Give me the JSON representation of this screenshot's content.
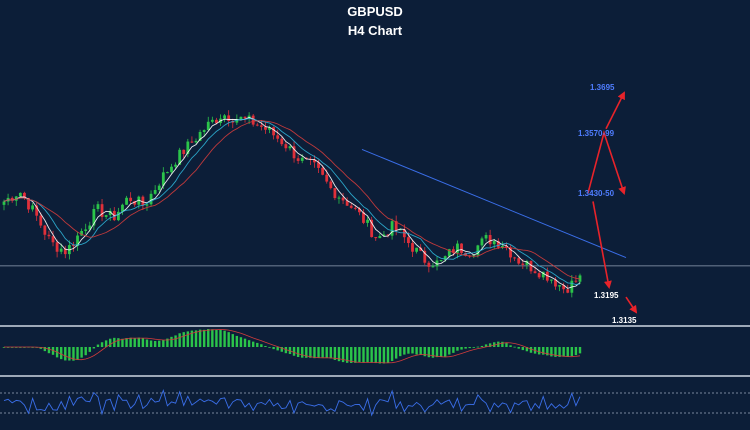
{
  "chart_data": {
    "type": "candlestick",
    "title": "GBPUSD",
    "subtitle": "H4 Chart",
    "symbol": "GBPUSD",
    "timeframe": "H4",
    "grid": false,
    "price_levels": [
      {
        "label": "1.3695",
        "value": 1.3695,
        "color": "#4f7dff"
      },
      {
        "label": "1.3570-99",
        "value": 1.3585,
        "color": "#4f7dff"
      },
      {
        "label": "1.3430-50",
        "value": 1.344,
        "color": "#4f7dff"
      },
      {
        "label": "1.3195",
        "value": 1.3195,
        "color": "#ffffff"
      },
      {
        "label": "1.3135",
        "value": 1.3135,
        "color": "#ffffff"
      }
    ],
    "price_path": [
      1.342,
      1.3445,
      1.339,
      1.332,
      1.33,
      1.335,
      1.34,
      1.338,
      1.343,
      1.341,
      1.347,
      1.352,
      1.356,
      1.36,
      1.363,
      1.362,
      1.361,
      1.359,
      1.356,
      1.352,
      1.35,
      1.345,
      1.342,
      1.338,
      1.333,
      1.336,
      1.332,
      1.328,
      1.327,
      1.331,
      1.33,
      1.333,
      1.332,
      1.328,
      1.326,
      1.324,
      1.321,
      1.3235
    ],
    "trendline": {
      "from": 1.3545,
      "to": 1.3285
    },
    "horizontal_line": 1.3265,
    "forecast_path": [
      1.344,
      1.3585,
      1.344
    ],
    "forecast_alt_path": [
      1.342,
      1.3195
    ],
    "forecast_extension": [
      1.3195,
      1.3135
    ],
    "forecast_target": 1.3695,
    "colors": {
      "background": "#0c1e38",
      "bull_candle": "#2bc44a",
      "bear_candle": "#e0303a",
      "ma_fast": "#ffffff",
      "ma_mid": "#2fb2d6",
      "ma_slow": "#d13c3c",
      "trendline": "#3a6ee8",
      "arrow": "#e8232a",
      "macd_hist": "#2bc44a",
      "rsi_line": "#3a6ee8"
    }
  }
}
